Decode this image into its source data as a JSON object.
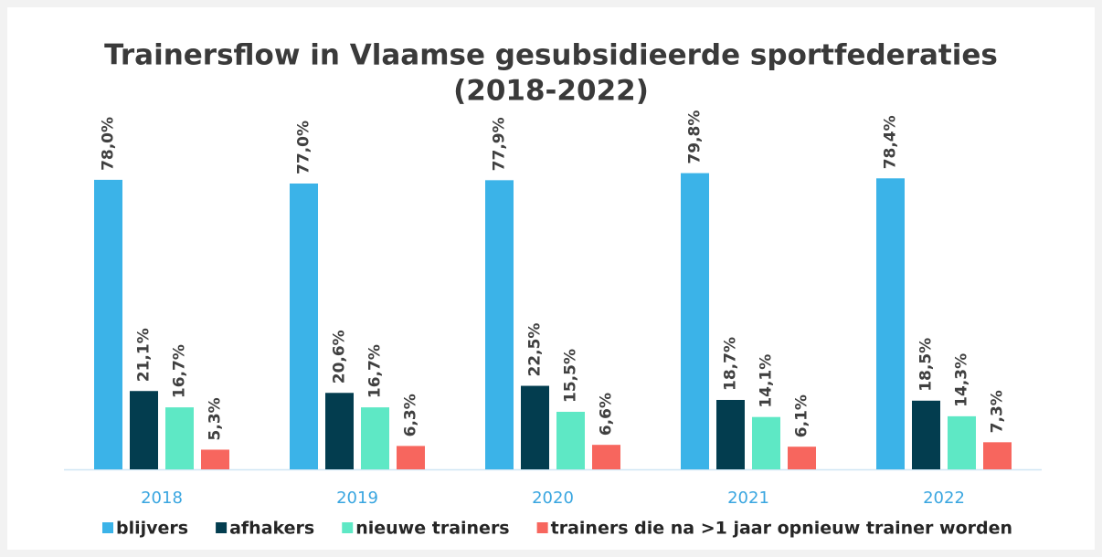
{
  "chart_data": {
    "type": "bar",
    "title": "Trainersflow in Vlaamse gesubsidieerde sportfederaties",
    "subtitle": "(2018-2022)",
    "categories": [
      "2018",
      "2019",
      "2020",
      "2021",
      "2022"
    ],
    "series": [
      {
        "name": "blijvers",
        "color": "#3bb3e8",
        "values": [
          78.0,
          77.0,
          77.9,
          79.8,
          78.4
        ],
        "value_labels": [
          "78,0%",
          "77,0%",
          "77,9%",
          "79,8%",
          "78,4%"
        ]
      },
      {
        "name": "afhakers",
        "color": "#033d4f",
        "values": [
          21.1,
          20.6,
          22.5,
          18.7,
          18.5
        ],
        "value_labels": [
          "21,1%",
          "20,6%",
          "22,5%",
          "18,7%",
          "18,5%"
        ]
      },
      {
        "name": "nieuwe trainers",
        "color": "#5ee8c5",
        "values": [
          16.7,
          16.7,
          15.5,
          14.1,
          14.3
        ],
        "value_labels": [
          "16,7%",
          "16,7%",
          "15,5%",
          "14,1%",
          "14,3%"
        ]
      },
      {
        "name": "trainers die na >1 jaar opnieuw trainer worden",
        "color": "#f7665e",
        "values": [
          5.3,
          6.3,
          6.6,
          6.1,
          7.3
        ],
        "value_labels": [
          "5,3%",
          "6,3%",
          "6,6%",
          "6,1%",
          "7,3%"
        ]
      }
    ],
    "legend": "bottom"
  }
}
